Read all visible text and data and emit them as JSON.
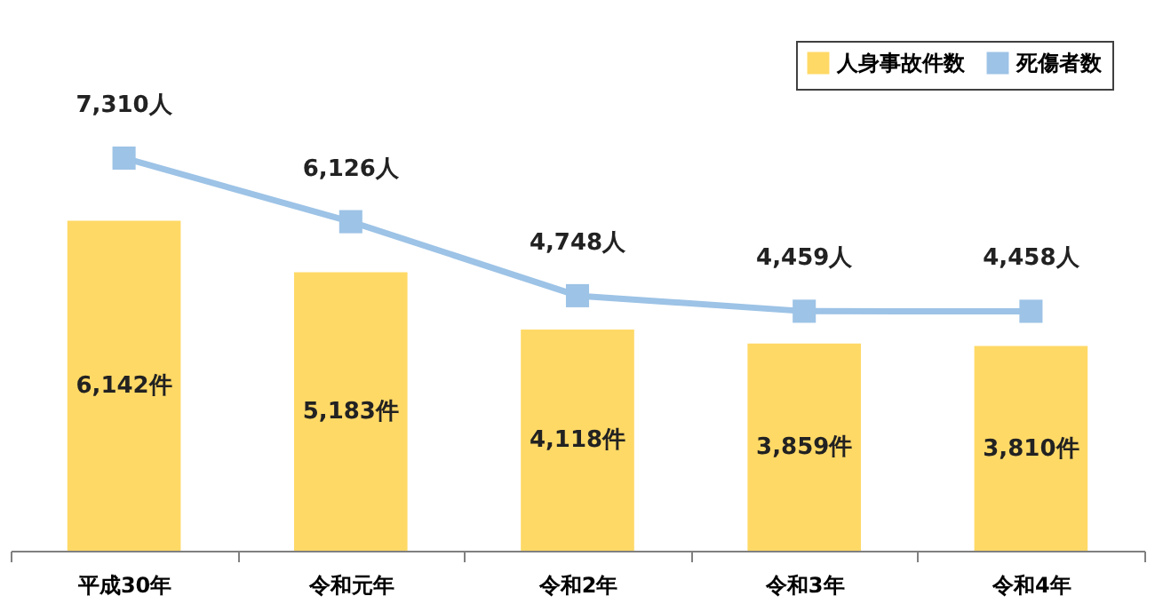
{
  "chart_data": {
    "type": "bar",
    "categories": [
      "平成30年",
      "令和元年",
      "令和2年",
      "令和3年",
      "令和4年"
    ],
    "legend": "top right",
    "series": [
      {
        "name": "人身事故件数",
        "color": "#ffd966",
        "values": [
          6142,
          5183,
          4118,
          3859,
          3810
        ],
        "value_labels": [
          "6,142件",
          "5,183件",
          "4,118件",
          "3,859件",
          "3,810件"
        ]
      },
      {
        "name": "死傷者数",
        "type": "line",
        "color": "#9dc3e6",
        "marker": "square",
        "values": [
          7310,
          6126,
          4748,
          4459,
          4458
        ],
        "value_labels": [
          "7,310人",
          "6,126人",
          "4,748人",
          "4,459人",
          "4,458人"
        ]
      }
    ]
  }
}
